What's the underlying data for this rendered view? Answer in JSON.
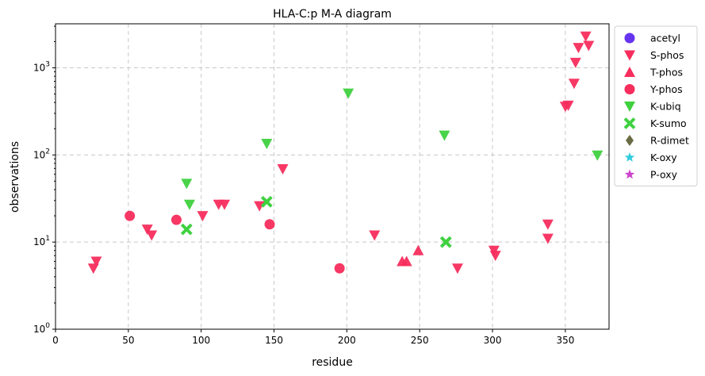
{
  "chart_data": {
    "type": "scatter",
    "title": "HLA-C:p M-A diagram",
    "xlabel": "residue",
    "ylabel": "observations",
    "xlim": [
      0,
      380
    ],
    "ylim": [
      1,
      3200
    ],
    "yscale": "log",
    "grid": true,
    "legend_position": "outside-right",
    "x_ticks": [
      "0",
      "50",
      "100",
      "150",
      "200",
      "250",
      "300",
      "350"
    ],
    "x_tick_values": [
      0,
      50,
      100,
      150,
      200,
      250,
      300,
      350
    ],
    "y_ticks": [
      {
        "value": 1,
        "base": "10",
        "exp": "0"
      },
      {
        "value": 10,
        "base": "10",
        "exp": "1"
      },
      {
        "value": 100,
        "base": "10",
        "exp": "2"
      },
      {
        "value": 1000,
        "base": "10",
        "exp": "3"
      }
    ],
    "series": [
      {
        "name": "acetyl",
        "marker": "circle",
        "color": "#6633ee",
        "points": []
      },
      {
        "name": "S-phos",
        "marker": "triangle-down",
        "color": "#f72d5d",
        "points": [
          [
            26,
            5
          ],
          [
            28,
            6
          ],
          [
            63,
            14
          ],
          [
            66,
            12
          ],
          [
            101,
            20
          ],
          [
            112,
            27
          ],
          [
            116,
            27
          ],
          [
            140,
            26
          ],
          [
            156,
            69
          ],
          [
            219,
            12
          ],
          [
            276,
            5
          ],
          [
            301,
            8
          ],
          [
            302,
            7
          ],
          [
            338,
            16
          ],
          [
            338,
            11
          ],
          [
            350,
            360
          ],
          [
            352,
            370
          ],
          [
            356,
            660
          ],
          [
            357,
            1150
          ],
          [
            359,
            1700
          ],
          [
            364,
            2300
          ],
          [
            366,
            1800
          ]
        ]
      },
      {
        "name": "T-phos",
        "marker": "triangle-up",
        "color": "#f72d5d",
        "points": [
          [
            238,
            6
          ],
          [
            241,
            6
          ],
          [
            249,
            8
          ]
        ]
      },
      {
        "name": "Y-phos",
        "marker": "circle",
        "color": "#f72d5d",
        "points": [
          [
            51,
            20
          ],
          [
            83,
            18
          ],
          [
            147,
            16
          ],
          [
            195,
            5
          ]
        ]
      },
      {
        "name": "K-ubiq",
        "marker": "triangle-down",
        "color": "#3fd13f",
        "points": [
          [
            90,
            47
          ],
          [
            92,
            27
          ],
          [
            145,
            135
          ],
          [
            201,
            510
          ],
          [
            267,
            168
          ],
          [
            372,
            99
          ]
        ]
      },
      {
        "name": "K-sumo",
        "marker": "x",
        "color": "#3fd13f",
        "points": [
          [
            90,
            14
          ],
          [
            145,
            29
          ],
          [
            268,
            10
          ]
        ]
      },
      {
        "name": "R-dimet",
        "marker": "diamond",
        "color": "#6b6b45",
        "points": []
      },
      {
        "name": "K-oxy",
        "marker": "star",
        "color": "#33ccdd",
        "points": []
      },
      {
        "name": "P-oxy",
        "marker": "star",
        "color": "#cc44cc",
        "points": []
      }
    ]
  }
}
